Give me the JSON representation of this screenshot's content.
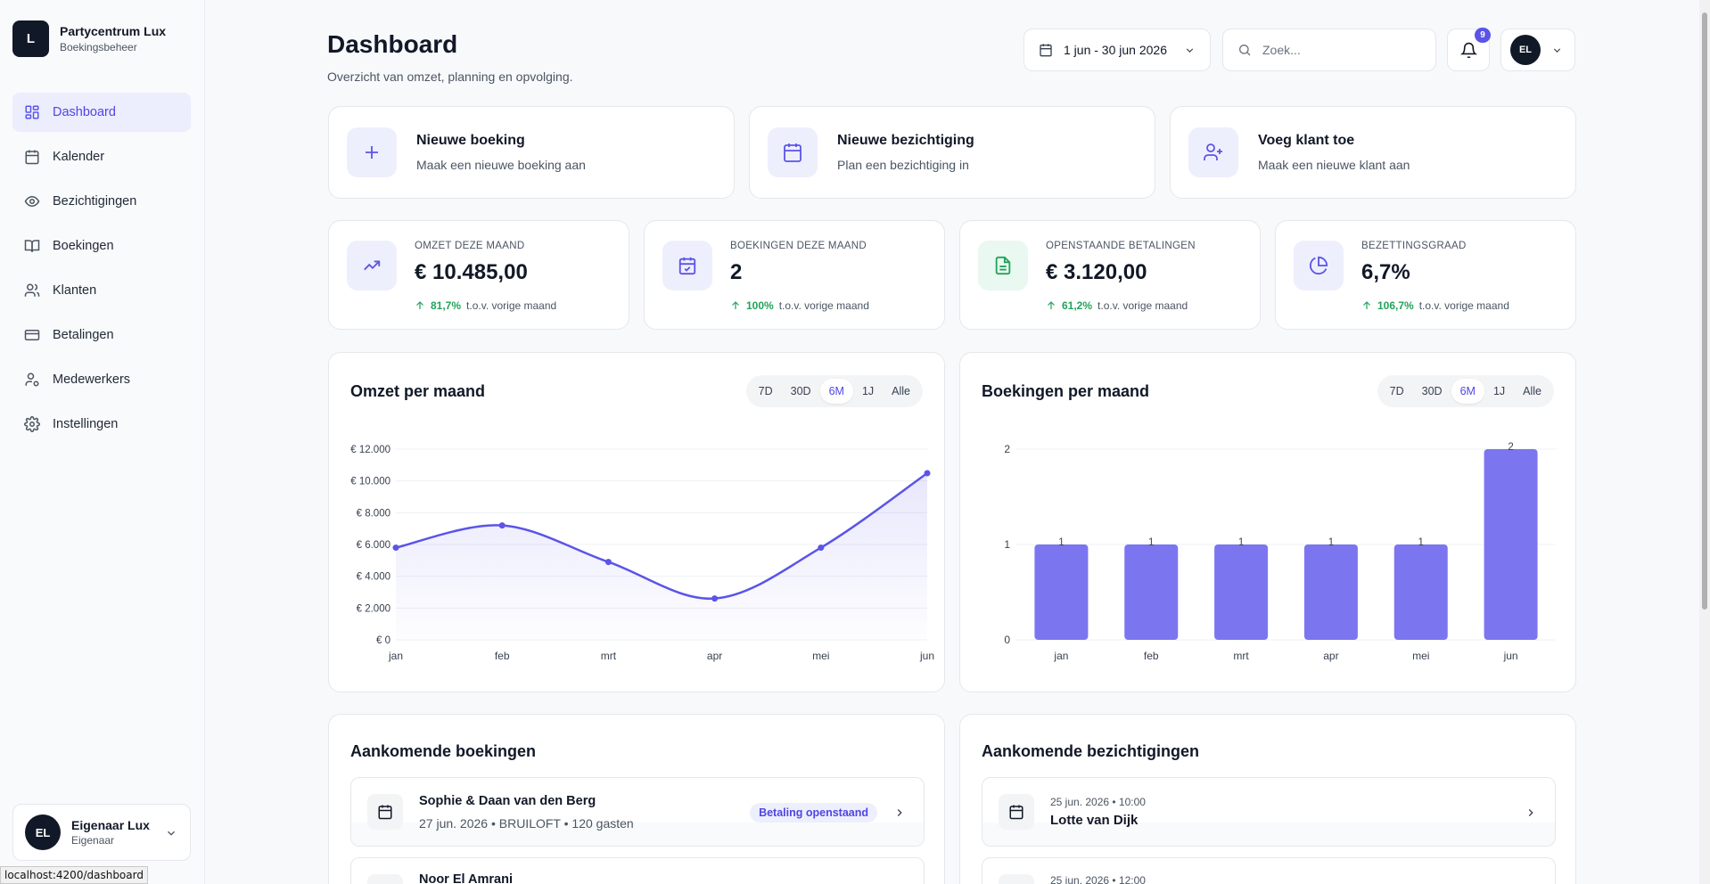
{
  "brand": {
    "logo_letter": "L",
    "name": "Partycentrum Lux",
    "subtitle": "Boekingsbeheer"
  },
  "sidebar": {
    "items": [
      {
        "label": "Dashboard",
        "icon": "dashboard-icon",
        "active": true
      },
      {
        "label": "Kalender",
        "icon": "calendar-icon"
      },
      {
        "label": "Bezichtigingen",
        "icon": "eye-icon"
      },
      {
        "label": "Boekingen",
        "icon": "book-icon"
      },
      {
        "label": "Klanten",
        "icon": "users-icon"
      },
      {
        "label": "Betalingen",
        "icon": "credit-card-icon"
      },
      {
        "label": "Medewerkers",
        "icon": "user-cog-icon"
      },
      {
        "label": "Instellingen",
        "icon": "gear-icon"
      }
    ]
  },
  "user": {
    "initials": "EL",
    "name": "Eigenaar Lux",
    "role": "Eigenaar"
  },
  "status_url": "localhost:4200/dashboard",
  "header": {
    "title": "Dashboard",
    "subtitle": "Overzicht van omzet, planning en opvolging.",
    "date_range": "1 jun - 30 jun 2026",
    "search_placeholder": "Zoek...",
    "notification_count": "9",
    "profile_initials": "EL"
  },
  "quick_actions": [
    {
      "title": "Nieuwe boeking",
      "subtitle": "Maak een nieuwe boeking aan",
      "icon": "plus-icon"
    },
    {
      "title": "Nieuwe bezichtiging",
      "subtitle": "Plan een bezichtiging in",
      "icon": "calendar-icon"
    },
    {
      "title": "Voeg klant toe",
      "subtitle": "Maak een nieuwe klant aan",
      "icon": "user-plus-icon"
    }
  ],
  "kpis": [
    {
      "label": "OMZET DEZE MAAND",
      "value": "€ 10.485,00",
      "change": "81,7%",
      "note": "t.o.v. vorige maand",
      "icon": "trending-up-icon"
    },
    {
      "label": "BOEKINGEN DEZE MAAND",
      "value": "2",
      "change": "100%",
      "note": "t.o.v. vorige maand",
      "icon": "calendar-check-icon"
    },
    {
      "label": "OPENSTAANDE BETALINGEN",
      "value": "€ 3.120,00",
      "change": "61,2%",
      "note": "t.o.v. vorige maand",
      "icon": "document-icon"
    },
    {
      "label": "BEZETTINGSGRAAD",
      "value": "6,7%",
      "change": "106,7%",
      "note": "t.o.v. vorige maand",
      "icon": "pie-chart-icon"
    }
  ],
  "range_tabs": [
    "7D",
    "30D",
    "6M",
    "1J",
    "Alle"
  ],
  "range_active": "6M",
  "colors": {
    "accent": "#5b54e8",
    "bar": "#7b76f0",
    "positive": "#22a35a"
  },
  "chart_data": [
    {
      "type": "line",
      "title": "Omzet per maand",
      "x": [
        "jan",
        "feb",
        "mrt",
        "apr",
        "mei",
        "jun"
      ],
      "values": [
        5800,
        7200,
        4900,
        2600,
        5800,
        10485
      ],
      "ylim": [
        0,
        12000
      ],
      "yticks": [
        0,
        2000,
        4000,
        6000,
        8000,
        10000,
        12000
      ],
      "ytick_labels": [
        "€ 0",
        "€ 2.000",
        "€ 4.000",
        "€ 6.000",
        "€ 8.000",
        "€ 10.000",
        "€ 12.000"
      ],
      "grid": true
    },
    {
      "type": "bar",
      "title": "Boekingen per maand",
      "categories": [
        "jan",
        "feb",
        "mrt",
        "apr",
        "mei",
        "jun"
      ],
      "values": [
        1,
        1,
        1,
        1,
        1,
        2
      ],
      "ylim": [
        0,
        2
      ],
      "yticks": [
        0,
        1,
        2
      ],
      "ytick_labels": [
        "0",
        "1",
        "2"
      ],
      "data_labels": [
        "1",
        "1",
        "1",
        "1",
        "1",
        "2"
      ],
      "grid": true
    }
  ],
  "upcoming_bookings": {
    "title": "Aankomende boekingen",
    "items": [
      {
        "name": "Sophie & Daan van den Berg",
        "meta": "27 jun. 2026 • BRUILOFT • 120 gasten",
        "badge": "Betaling openstaand"
      },
      {
        "name": "Noor El Amrani"
      }
    ]
  },
  "upcoming_viewings": {
    "title": "Aankomende bezichtigingen",
    "items": [
      {
        "when": "25 jun. 2026 • 10:00",
        "person": "Lotte van Dijk"
      },
      {
        "when": "25 jun. 2026 • 12:00"
      }
    ]
  }
}
